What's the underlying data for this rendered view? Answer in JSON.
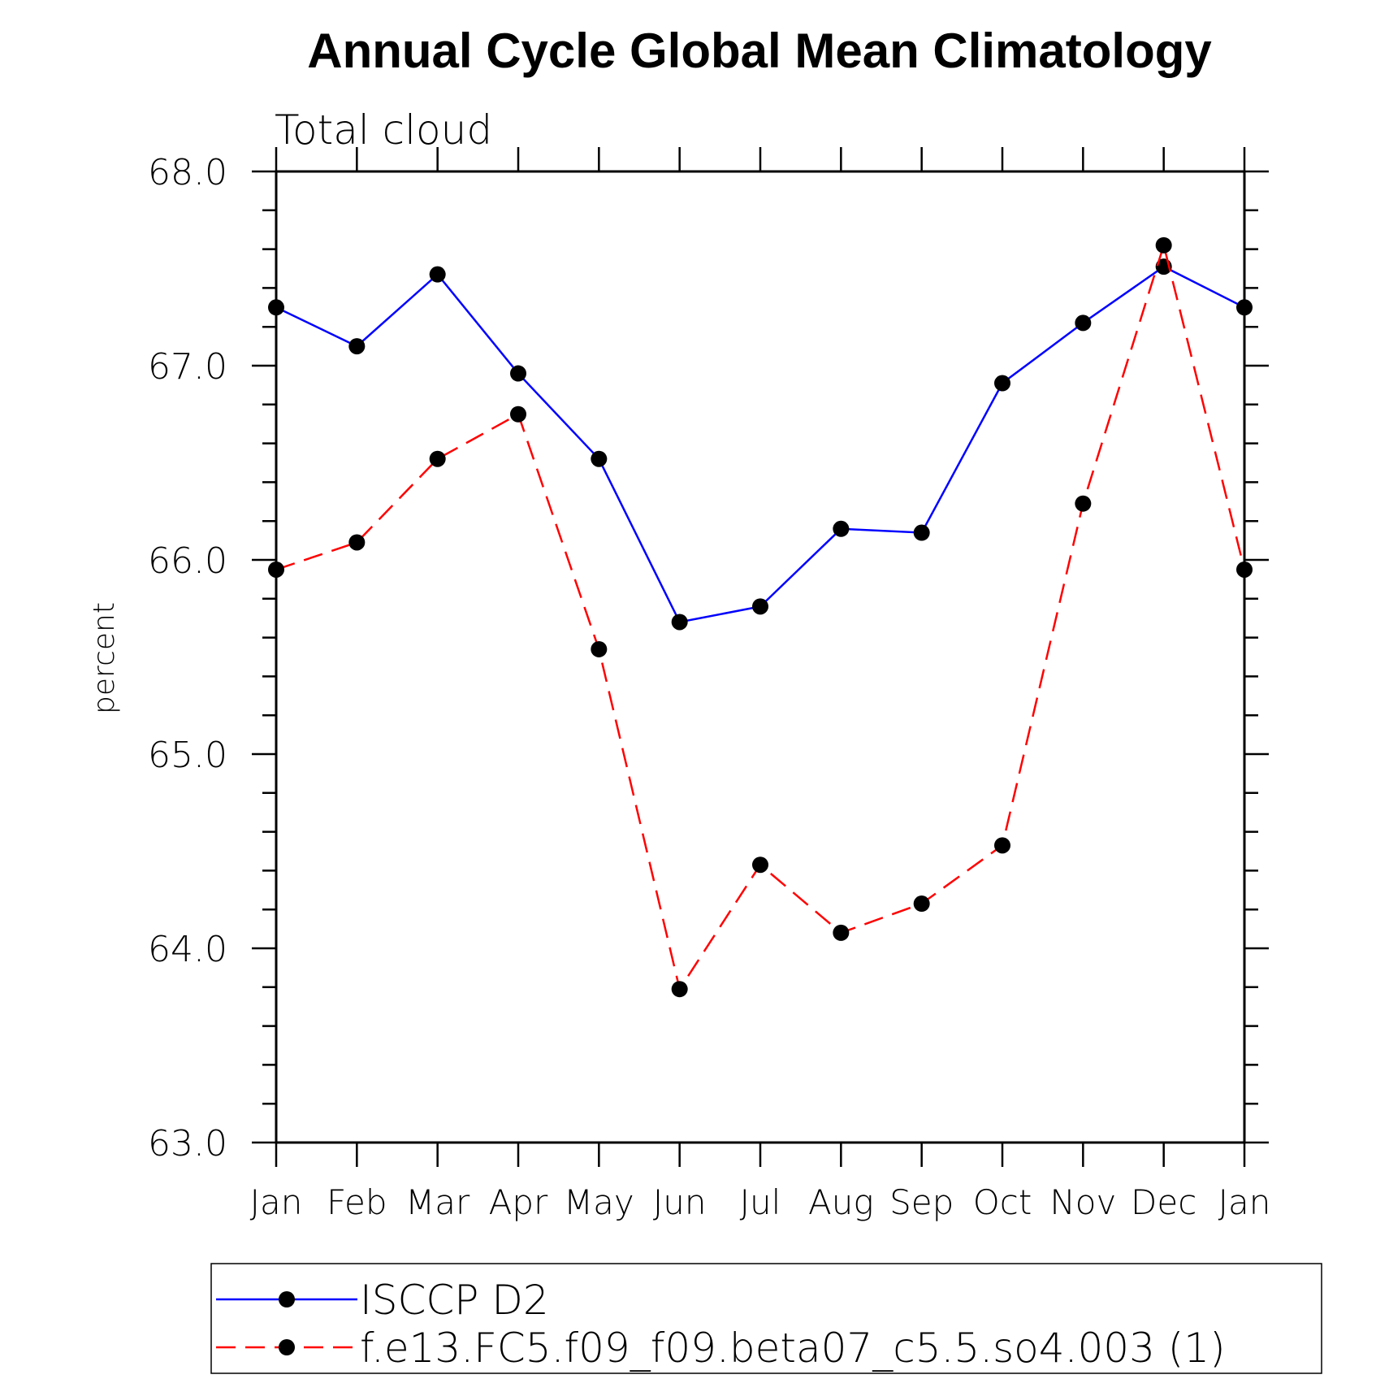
{
  "chart_data": {
    "type": "line",
    "title": "Annual Cycle Global Mean Climatology",
    "subtitle": "Total cloud",
    "xlabel": "",
    "ylabel": "percent",
    "categories": [
      "Jan",
      "Feb",
      "Mar",
      "Apr",
      "May",
      "Jun",
      "Jul",
      "Aug",
      "Sep",
      "Oct",
      "Nov",
      "Dec",
      "Jan"
    ],
    "ylim": [
      63.0,
      68.0
    ],
    "yticks": [
      "63.0",
      "64.0",
      "65.0",
      "66.0",
      "67.0",
      "68.0"
    ],
    "grid": false,
    "legend_position": "bottom",
    "series": [
      {
        "name": "ISCCP D2",
        "color": "#0000ff",
        "dash": "solid",
        "marker": "filled-circle",
        "values": [
          67.3,
          67.1,
          67.47,
          66.96,
          66.52,
          65.68,
          65.76,
          66.16,
          66.14,
          66.91,
          67.22,
          67.51,
          67.3
        ]
      },
      {
        "name": "f.e13.FC5.f09_f09.beta07_c5.5.so4.003 (1)",
        "color": "#ff0000",
        "dash": "dashed",
        "marker": "filled-circle",
        "values": [
          65.95,
          66.09,
          66.52,
          66.75,
          65.54,
          63.79,
          64.43,
          64.08,
          64.23,
          64.53,
          66.29,
          67.62,
          65.95
        ]
      }
    ]
  }
}
